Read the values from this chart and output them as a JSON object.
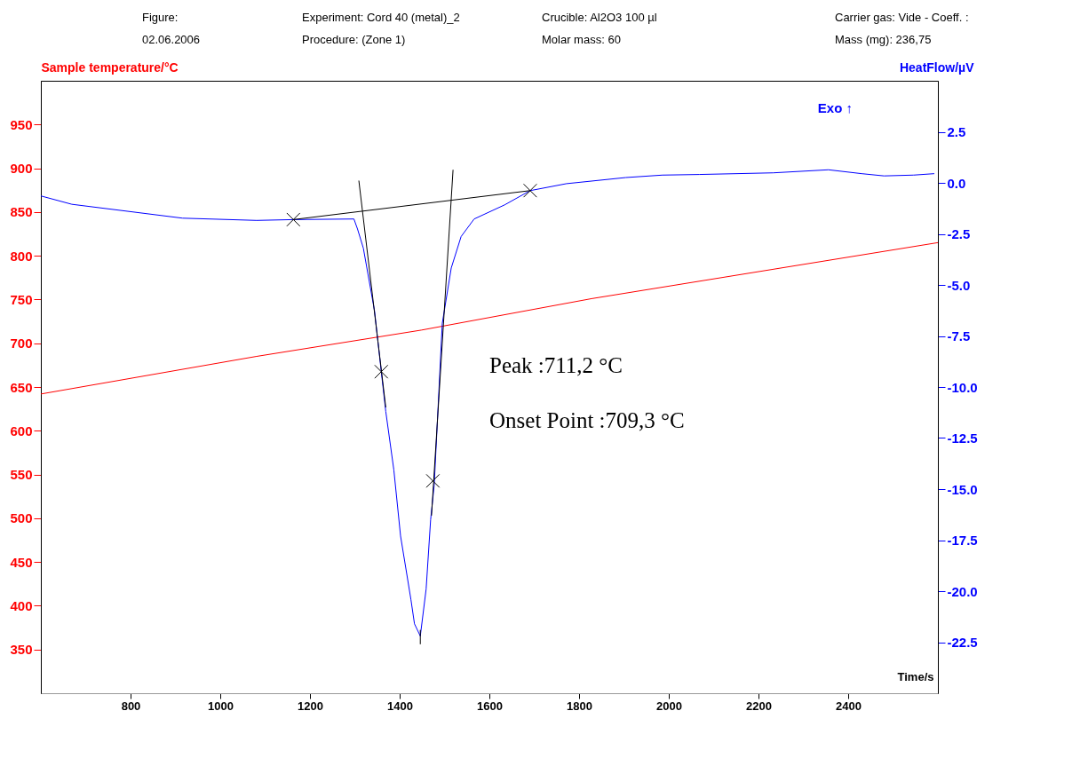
{
  "chart_data": {
    "type": "line",
    "xlabel": "Time/s",
    "ylabel": "Sample temperature/°C",
    "y2label": "HeatFlow/µV",
    "xlim": [
      600,
      2600
    ],
    "xticks": [
      800,
      1000,
      1200,
      1400,
      1600,
      1800,
      2000,
      2200,
      2400
    ],
    "ylim": [
      300,
      1000
    ],
    "yticks": [
      350,
      400,
      450,
      500,
      550,
      600,
      650,
      700,
      750,
      800,
      850,
      900,
      950
    ],
    "y2lim": [
      -25,
      5
    ],
    "y2ticks": [
      2.5,
      {
        "value": 0,
        "label": "0.0"
      },
      -2.5,
      {
        "value": -5,
        "label": "-5.0"
      },
      -7.5,
      {
        "value": -10,
        "label": "-10.0"
      },
      -12.5,
      {
        "value": -15,
        "label": "-15.0"
      },
      -17.5,
      {
        "value": -20,
        "label": "-20.0"
      },
      -22.5
    ],
    "grid": false,
    "annotations": [
      "Figure:",
      "Experiment: Cord 40 (metal)_2",
      "Crucible: Al2O3 100 µl",
      "Carrier gas: Vide - Coeff. :",
      "02.06.2006",
      "Procedure: (Zone 1)",
      "Molar mass: 60",
      "Mass (mg): 236,75",
      "Exo ↑",
      "Peak :711,2 °C",
      "Onset Point :709,3 °C"
    ],
    "series": [
      {
        "axis": "y",
        "color": "#ff0000",
        "x": [
          600,
          1081,
          1448,
          1828,
          2600
        ],
        "values": [
          642,
          685,
          715,
          751,
          815
        ]
      },
      {
        "axis": "y2",
        "color": "#0000ff",
        "x": [
          600,
          669,
          916,
          1081,
          1163,
          1298,
          1306,
          1319,
          1344,
          1359,
          1369,
          1387,
          1402,
          1425,
          1433,
          1446,
          1459,
          1469,
          1477,
          1495,
          1515,
          1537,
          1566,
          1634,
          1691,
          1772,
          1904,
          1986,
          2068,
          2233,
          2356,
          2430,
          2480,
          2546,
          2592
        ],
        "values": [
          -0.64,
          -1.05,
          -1.73,
          -1.84,
          -1.8,
          -1.77,
          -2.26,
          -3.2,
          -6.28,
          -9.25,
          -11.2,
          -14.06,
          -17.3,
          -20.4,
          -21.6,
          -22.2,
          -19.9,
          -16.5,
          -14.8,
          -6.88,
          -4.17,
          -2.63,
          -1.77,
          -1.08,
          -0.38,
          -0.04,
          0.26,
          0.38,
          0.41,
          0.49,
          0.64,
          0.45,
          0.34,
          0.38,
          0.45
        ]
      },
      {
        "axis": "y2",
        "color": "#000000",
        "x": [
          1163,
          1691
        ],
        "values": [
          -1.8,
          -0.38
        ]
      },
      {
        "axis": "y2",
        "color": "#000000",
        "x": [
          1309,
          1369
        ],
        "values": [
          0.11,
          -11.0
        ]
      },
      {
        "axis": "y2",
        "color": "#000000",
        "x": [
          1519,
          1471
        ],
        "values": [
          0.64,
          -16.3
        ]
      },
      {
        "axis": "y2",
        "color": "#000000",
        "x": [
          1446,
          1446
        ],
        "values": [
          -21.9,
          -22.6
        ]
      },
      {
        "type": "scatter",
        "axis": "y2",
        "color": "#000000",
        "marker": "cross",
        "x": [
          1163,
          1359,
          1474,
          1691
        ],
        "values": [
          -1.8,
          -9.25,
          -14.6,
          -0.38
        ]
      }
    ]
  }
}
